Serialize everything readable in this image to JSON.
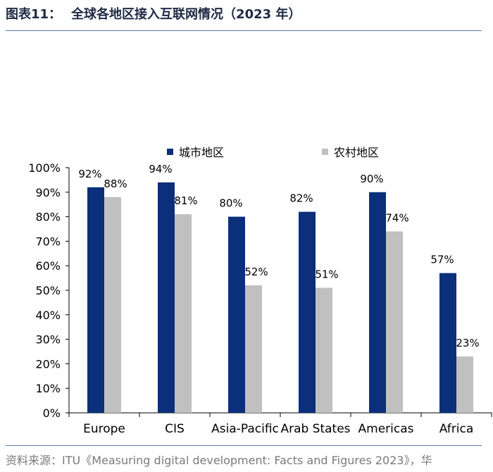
{
  "header": {
    "figure_number": "图表11：",
    "title": "全球各地区接入互联网情况（2023 年）"
  },
  "source": "资料来源：ITU《Measuring digital development: Facts and Figures 2023》，华",
  "colors": {
    "urban": "#0b2f7a",
    "rural": "#c0c0c0",
    "rule": "#5b7fa6",
    "title": "#1f2a44"
  },
  "chart_data": {
    "type": "bar",
    "categories": [
      "Europe",
      "CIS",
      "Asia-Pacific",
      "Arab States",
      "Americas",
      "Africa"
    ],
    "series": [
      {
        "name": "城市地区",
        "values": [
          92,
          94,
          80,
          82,
          90,
          57
        ]
      },
      {
        "name": "农村地区",
        "values": [
          88,
          81,
          52,
          51,
          74,
          23
        ]
      }
    ],
    "ylim": [
      0,
      100
    ],
    "yticks": [
      "0%",
      "10%",
      "20%",
      "30%",
      "40%",
      "50%",
      "60%",
      "70%",
      "80%",
      "90%",
      "100%"
    ],
    "data_labels": [
      [
        "92%",
        "94%",
        "80%",
        "82%",
        "90%",
        "57%"
      ],
      [
        "88%",
        "81%",
        "52%",
        "51%",
        "74%",
        "23%"
      ]
    ],
    "legend_position": "top",
    "grid": false
  }
}
